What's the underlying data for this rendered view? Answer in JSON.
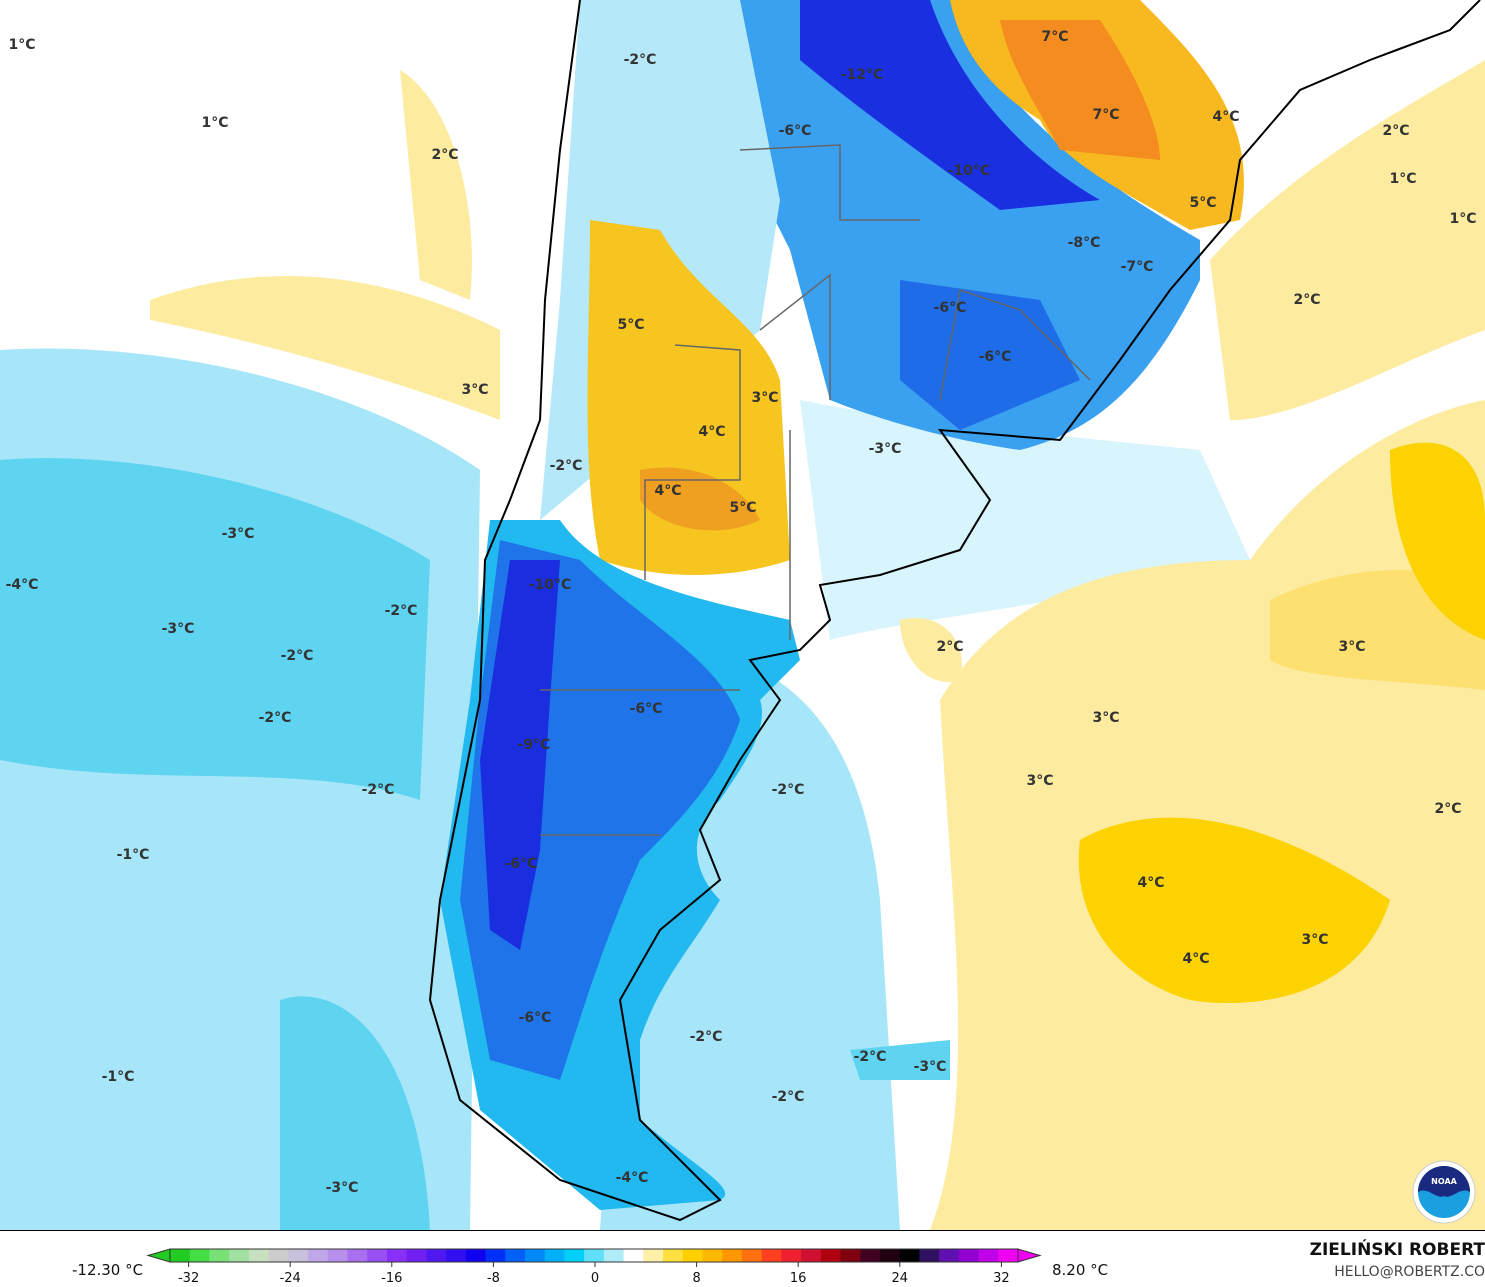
{
  "map": {
    "labels": [
      "1°C",
      "1°C",
      "2°C",
      "-2°C",
      "-12°C",
      "7°C",
      "7°C",
      "4°C",
      "2°C",
      "1°C",
      "1°C",
      "-6°C",
      "-10°C",
      "5°C",
      "-8°C",
      "-7°C",
      "2°C",
      "-6°C",
      "5°C",
      "-6°C",
      "3°C",
      "3°C",
      "4°C",
      "-3°C",
      "-2°C",
      "4°C",
      "5°C",
      "-3°C",
      "-4°C",
      "-10°C",
      "-2°C",
      "-3°C",
      "-2°C",
      "2°C",
      "3°C",
      "-6°C",
      "-2°C",
      "3°C",
      "-9°C",
      "3°C",
      "-2°C",
      "-2°C",
      "2°C",
      "-1°C",
      "-6°C",
      "4°C",
      "3°C",
      "4°C",
      "-6°C",
      "-2°C",
      "-2°C",
      "-3°C",
      "-1°C",
      "-2°C",
      "-3°C",
      "-4°C"
    ],
    "logo_text": "NOAA"
  },
  "legend": {
    "min_label": "-12.30 °C",
    "max_label": "8.20 °C",
    "ticks": [
      "-32",
      "-24",
      "-16",
      "-8",
      "0",
      "8",
      "16",
      "24",
      "32"
    ],
    "colors": [
      "#22cc22",
      "#44dd44",
      "#77e077",
      "#a0e0a0",
      "#c8e0c0",
      "#cccccc",
      "#c8c0dc",
      "#c0a8e8",
      "#b890ec",
      "#a870f0",
      "#9850f4",
      "#8830f8",
      "#7020f0",
      "#5018f0",
      "#3010f0",
      "#1000f0",
      "#0030f8",
      "#0060f8",
      "#0088f8",
      "#00b0f8",
      "#00d0f8",
      "#60e0f8",
      "#b0ecf8",
      "#ffffff",
      "#fff0a8",
      "#ffe040",
      "#ffd000",
      "#ffb800",
      "#ff9800",
      "#ff7010",
      "#ff4020",
      "#f02030",
      "#d01030",
      "#b00010",
      "#800010",
      "#400020",
      "#200010",
      "#000000",
      "#301060",
      "#6010b0",
      "#9000d0",
      "#c000e8",
      "#f000f0"
    ]
  },
  "credit": {
    "name": "ZIELIŃSKI ROBERT",
    "email": "HELLO@ROBERTZ.CO"
  }
}
